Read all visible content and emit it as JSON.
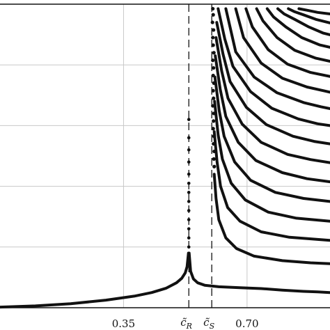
{
  "chart_data": {
    "type": "line",
    "title": "",
    "xlabel": "",
    "ylabel": "",
    "xlim": [
      0.0,
      0.935
    ],
    "ylim": [
      0.0,
      1.0
    ],
    "grid": true,
    "x_tick_labels": [
      "0.35",
      "0.70"
    ],
    "x_ticks": [
      0.35,
      0.7
    ],
    "y_ticks": [
      0.2,
      0.4,
      0.6,
      0.8
    ],
    "markers": [
      {
        "x": 0.535,
        "label": "c̃",
        "subscript": "R"
      },
      {
        "x": 0.6,
        "label": "c̃",
        "subscript": "S"
      }
    ],
    "series": [
      {
        "x": [
          0.0,
          0.1,
          0.2,
          0.3,
          0.38,
          0.43,
          0.47,
          0.5,
          0.515,
          0.525,
          0.53,
          0.534,
          0.536,
          0.54,
          0.548,
          0.56,
          0.58,
          0.62,
          0.68,
          0.74,
          0.8,
          0.86,
          0.9,
          0.935
        ],
        "y": [
          0.002,
          0.006,
          0.013,
          0.025,
          0.038,
          0.05,
          0.064,
          0.082,
          0.097,
          0.115,
          0.135,
          0.18,
          0.18,
          0.12,
          0.095,
          0.082,
          0.074,
          0.069,
          0.066,
          0.063,
          0.058,
          0.054,
          0.052,
          0.05
        ]
      },
      {
        "x": [
          0.607,
          0.612,
          0.62,
          0.64,
          0.67,
          0.72,
          0.8,
          0.88,
          0.935
        ],
        "y": [
          0.44,
          0.36,
          0.29,
          0.23,
          0.195,
          0.17,
          0.155,
          0.148,
          0.145
        ]
      },
      {
        "x": [
          0.607,
          0.615,
          0.625,
          0.645,
          0.68,
          0.74,
          0.82,
          0.935
        ],
        "y": [
          0.58,
          0.48,
          0.4,
          0.33,
          0.285,
          0.25,
          0.232,
          0.222
        ]
      },
      {
        "x": [
          0.608,
          0.618,
          0.63,
          0.655,
          0.695,
          0.76,
          0.84,
          0.935
        ],
        "y": [
          0.68,
          0.57,
          0.49,
          0.41,
          0.355,
          0.315,
          0.295,
          0.285
        ]
      },
      {
        "x": [
          0.609,
          0.621,
          0.635,
          0.665,
          0.71,
          0.78,
          0.86,
          0.935
        ],
        "y": [
          0.76,
          0.65,
          0.565,
          0.48,
          0.42,
          0.38,
          0.36,
          0.35
        ]
      },
      {
        "x": [
          0.61,
          0.624,
          0.64,
          0.675,
          0.725,
          0.8,
          0.87,
          0.935
        ],
        "y": [
          0.83,
          0.72,
          0.63,
          0.545,
          0.485,
          0.445,
          0.425,
          0.415
        ]
      },
      {
        "x": [
          0.612,
          0.628,
          0.646,
          0.686,
          0.74,
          0.815,
          0.88,
          0.935
        ],
        "y": [
          0.89,
          0.78,
          0.69,
          0.605,
          0.545,
          0.505,
          0.488,
          0.478
        ]
      },
      {
        "x": [
          0.614,
          0.632,
          0.652,
          0.698,
          0.755,
          0.83,
          0.89,
          0.935
        ],
        "y": [
          0.94,
          0.835,
          0.745,
          0.66,
          0.603,
          0.565,
          0.548,
          0.54
        ]
      },
      {
        "x": [
          0.618,
          0.637,
          0.66,
          0.71,
          0.77,
          0.845,
          0.9,
          0.935
        ],
        "y": [
          0.985,
          0.885,
          0.795,
          0.712,
          0.657,
          0.622,
          0.606,
          0.6
        ]
      },
      {
        "x": [
          0.64,
          0.668,
          0.72,
          0.785,
          0.86,
          0.91,
          0.935
        ],
        "y": [
          0.985,
          0.843,
          0.76,
          0.708,
          0.676,
          0.662,
          0.656
        ]
      },
      {
        "x": [
          0.668,
          0.69,
          0.74,
          0.8,
          0.87,
          0.92,
          0.935
        ],
        "y": [
          0.985,
          0.89,
          0.806,
          0.756,
          0.727,
          0.714,
          0.71
        ]
      },
      {
        "x": [
          0.697,
          0.715,
          0.76,
          0.815,
          0.88,
          0.935
        ],
        "y": [
          0.985,
          0.925,
          0.85,
          0.802,
          0.775,
          0.762
        ]
      },
      {
        "x": [
          0.727,
          0.745,
          0.785,
          0.835,
          0.895,
          0.935
        ],
        "y": [
          0.985,
          0.945,
          0.89,
          0.848,
          0.822,
          0.812
        ]
      },
      {
        "x": [
          0.757,
          0.775,
          0.81,
          0.855,
          0.905,
          0.935
        ],
        "y": [
          0.985,
          0.958,
          0.925,
          0.89,
          0.866,
          0.858
        ]
      },
      {
        "x": [
          0.787,
          0.805,
          0.835,
          0.875,
          0.915,
          0.935
        ],
        "y": [
          0.985,
          0.968,
          0.95,
          0.925,
          0.905,
          0.899
        ]
      },
      {
        "x": [
          0.817,
          0.835,
          0.86,
          0.895,
          0.935
        ],
        "y": [
          0.985,
          0.975,
          0.965,
          0.95,
          0.938
        ]
      },
      {
        "x": [
          0.847,
          0.87,
          0.9,
          0.935
        ],
        "y": [
          0.985,
          0.98,
          0.973,
          0.968
        ]
      }
    ],
    "points": {
      "near_cR_x": [
        0.535,
        0.535,
        0.535,
        0.535,
        0.535,
        0.535,
        0.535,
        0.535,
        0.535,
        0.535,
        0.535,
        0.535,
        0.535
      ],
      "near_cR_y": [
        0.62,
        0.56,
        0.52,
        0.48,
        0.44,
        0.41,
        0.38,
        0.35,
        0.32,
        0.29,
        0.26,
        0.23,
        0.2
      ],
      "near_cS_x": [
        0.603,
        0.604,
        0.602,
        0.605,
        0.603,
        0.604,
        0.606,
        0.603,
        0.605,
        0.604,
        0.606,
        0.604,
        0.605,
        0.603,
        0.606,
        0.605,
        0.604,
        0.606,
        0.605,
        0.607,
        0.606,
        0.607
      ],
      "near_cS_y": [
        0.985,
        0.965,
        0.94,
        0.915,
        0.89,
        0.865,
        0.84,
        0.815,
        0.79,
        0.765,
        0.74,
        0.715,
        0.69,
        0.665,
        0.64,
        0.615,
        0.59,
        0.565,
        0.54,
        0.515,
        0.49,
        0.465
      ]
    }
  }
}
